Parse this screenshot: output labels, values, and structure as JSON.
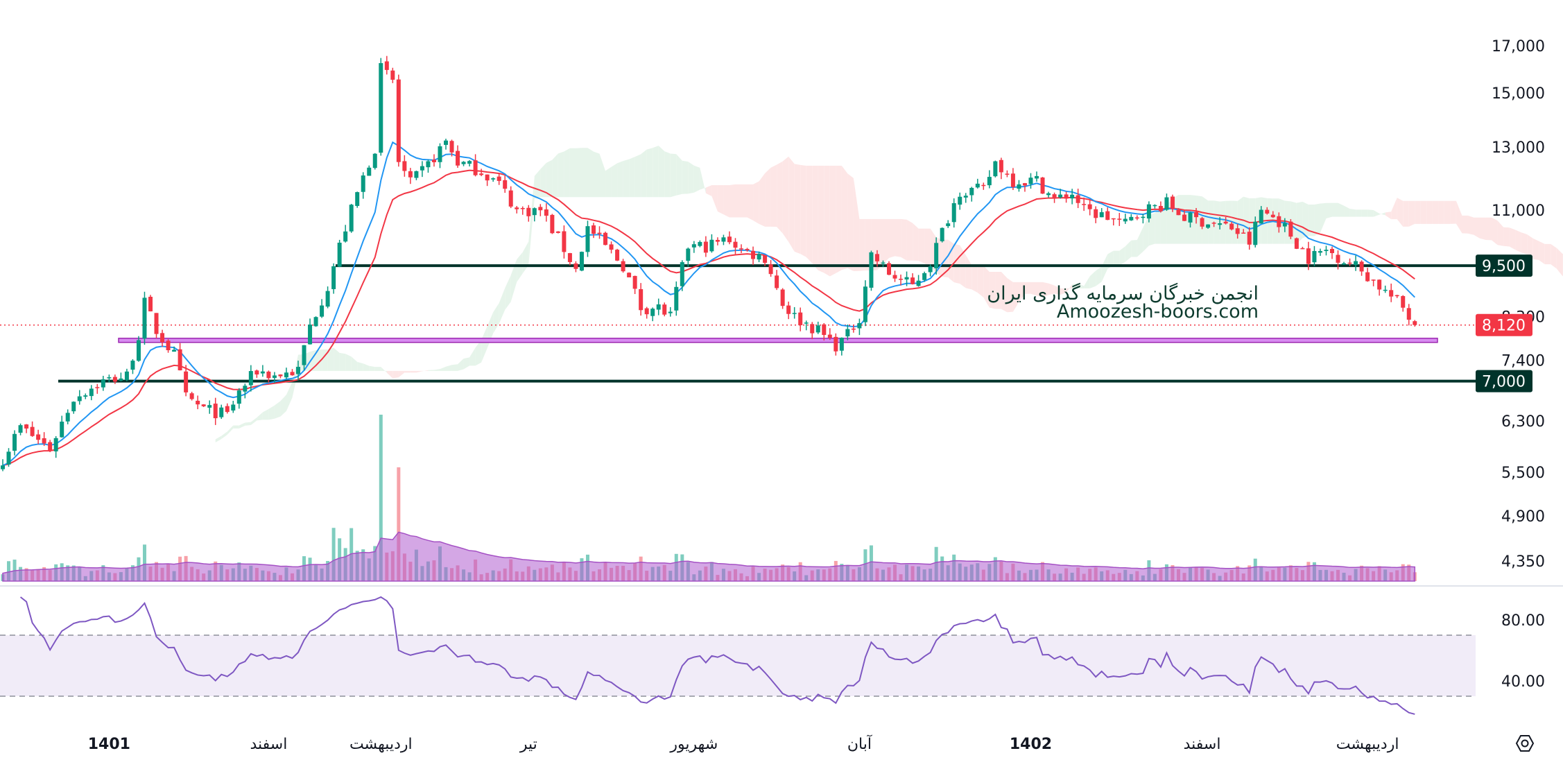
{
  "colors": {
    "up": "#089981",
    "down": "#f23645",
    "ema_fast": "#2196f3",
    "ema_slow": "#f23645",
    "level": "#00332a",
    "zone": "#c56be0",
    "rsi": "#7e57c2",
    "rsi_band": "#ede7f6",
    "cloud_up": "#e6f4ea",
    "cloud_down": "#fde6e6"
  },
  "watermark": {
    "line1": "انجمن خبرگان سرمایه گذاری ایران",
    "line2": "Amoozesh-boors.com"
  },
  "price_axis": {
    "ticks": [
      "17,000",
      "15,000",
      "13,000",
      "11,000",
      "8,300",
      "7,400",
      "6,300",
      "5,500",
      "4,900",
      "4,350"
    ],
    "tick_values": [
      17000,
      15000,
      13000,
      11000,
      8300,
      7400,
      6300,
      5500,
      4900,
      4350
    ]
  },
  "levels": [
    {
      "label": "9,500",
      "value": 9500
    },
    {
      "label": "7,000",
      "value": 7000
    }
  ],
  "last_price": {
    "label": "8,120",
    "value": 8120
  },
  "zone": {
    "from": 7760,
    "to": 7840
  },
  "rsi_axis": {
    "ticks": [
      "80.00",
      "40.00"
    ],
    "tick_values": [
      80,
      40
    ],
    "upper_band": 70,
    "lower_band": 30
  },
  "time_axis": [
    {
      "label": "1401",
      "bar": 18,
      "bold": true
    },
    {
      "label": "اسفند",
      "bar": 45
    },
    {
      "label": "اردیبهشت",
      "bar": 64
    },
    {
      "label": "تیر",
      "bar": 89
    },
    {
      "label": "شهریور",
      "bar": 117
    },
    {
      "label": "آبان",
      "bar": 145
    },
    {
      "label": "1402",
      "bar": 174,
      "bold": true
    },
    {
      "label": "اسفند",
      "bar": 203
    },
    {
      "label": "اردیبهشت",
      "bar": 231
    }
  ],
  "settings_icon": "gear-icon",
  "chart_data": {
    "type": "candlestick",
    "bars": 240,
    "indicators": [
      "EMA fast",
      "EMA slow",
      "Ichimoku cloud",
      "Volume + MA",
      "RSI 14"
    ],
    "close_keypoints": [
      [
        0,
        5700
      ],
      [
        3,
        6200
      ],
      [
        8,
        5850
      ],
      [
        12,
        6700
      ],
      [
        17,
        7000
      ],
      [
        21,
        7100
      ],
      [
        23,
        7900
      ],
      [
        24,
        8600
      ],
      [
        26,
        8000
      ],
      [
        29,
        7500
      ],
      [
        31,
        6700
      ],
      [
        34,
        6500
      ],
      [
        38,
        6400
      ],
      [
        40,
        6800
      ],
      [
        43,
        7200
      ],
      [
        46,
        7100
      ],
      [
        50,
        7200
      ],
      [
        52,
        8100
      ],
      [
        55,
        9000
      ],
      [
        58,
        10500
      ],
      [
        61,
        12000
      ],
      [
        63,
        13000
      ],
      [
        64,
        16000
      ],
      [
        66,
        15500
      ],
      [
        67,
        12500
      ],
      [
        69,
        11800
      ],
      [
        72,
        12400
      ],
      [
        75,
        13200
      ],
      [
        77,
        12500
      ],
      [
        81,
        12200
      ],
      [
        84,
        11800
      ],
      [
        87,
        11000
      ],
      [
        91,
        11000
      ],
      [
        94,
        10200
      ],
      [
        97,
        9400
      ],
      [
        99,
        10500
      ],
      [
        102,
        10000
      ],
      [
        105,
        9500
      ],
      [
        108,
        8500
      ],
      [
        111,
        8500
      ],
      [
        113,
        8300
      ],
      [
        116,
        10000
      ],
      [
        119,
        10000
      ],
      [
        123,
        10200
      ],
      [
        125,
        9900
      ],
      [
        129,
        9700
      ],
      [
        132,
        8600
      ],
      [
        134,
        8300
      ],
      [
        138,
        8000
      ],
      [
        141,
        7700
      ],
      [
        143,
        7900
      ],
      [
        145,
        8300
      ],
      [
        147,
        9800
      ],
      [
        150,
        9300
      ],
      [
        154,
        9000
      ],
      [
        157,
        9600
      ],
      [
        160,
        10800
      ],
      [
        162,
        11600
      ],
      [
        166,
        11600
      ],
      [
        168,
        12500
      ],
      [
        171,
        11900
      ],
      [
        175,
        11900
      ],
      [
        178,
        11300
      ],
      [
        181,
        11500
      ],
      [
        183,
        11000
      ],
      [
        187,
        10800
      ],
      [
        190,
        10600
      ],
      [
        193,
        11000
      ],
      [
        197,
        11200
      ],
      [
        200,
        10800
      ],
      [
        203,
        10700
      ],
      [
        208,
        10500
      ],
      [
        211,
        10100
      ],
      [
        213,
        11000
      ],
      [
        216,
        10700
      ],
      [
        218,
        10300
      ],
      [
        221,
        9700
      ],
      [
        224,
        9900
      ],
      [
        229,
        9500
      ],
      [
        233,
        9000
      ],
      [
        237,
        8500
      ],
      [
        239,
        8120
      ]
    ]
  }
}
